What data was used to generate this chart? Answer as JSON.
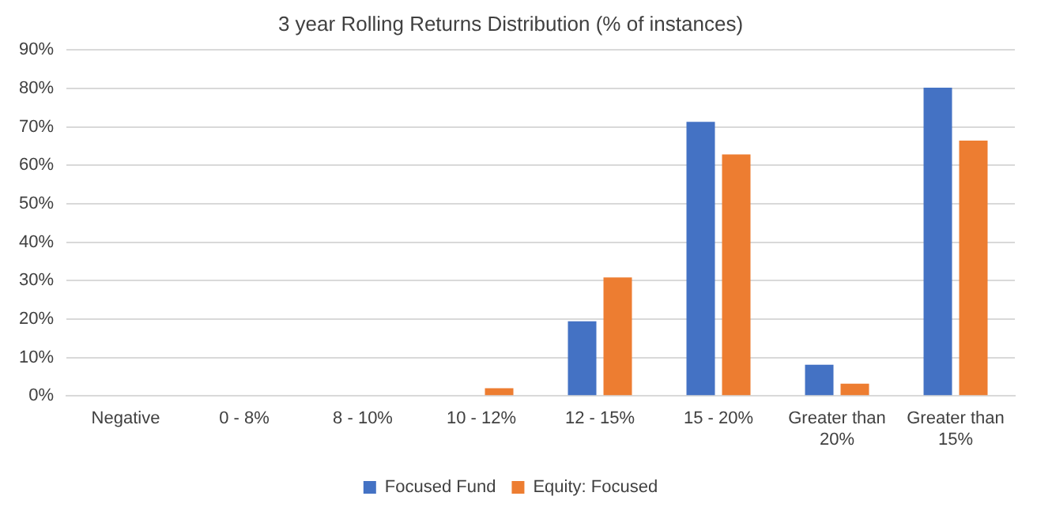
{
  "chart_data": {
    "type": "bar",
    "title": "3 year Rolling Returns Distribution (% of instances)",
    "categories": [
      "Negative",
      "0 - 8%",
      "8 - 10%",
      "10 - 12%",
      "12 - 15%",
      "15 - 20%",
      "Greater than 20%",
      "Greater than 15%"
    ],
    "series": [
      {
        "name": "Focused Fund",
        "color": "#4472c4",
        "values": [
          0,
          0,
          0,
          0,
          19.4,
          71.3,
          8.1,
          80.2
        ]
      },
      {
        "name": "Equity: Focused",
        "color": "#ed7d31",
        "values": [
          0,
          0,
          0,
          2.0,
          30.8,
          62.8,
          3.2,
          66.4
        ]
      }
    ],
    "ylim": [
      0,
      90
    ],
    "yticks": [
      {
        "value": 0,
        "label": "0%"
      },
      {
        "value": 10,
        "label": "10%"
      },
      {
        "value": 20,
        "label": "20%"
      },
      {
        "value": 30,
        "label": "30%"
      },
      {
        "value": 40,
        "label": "40%"
      },
      {
        "value": 50,
        "label": "50%"
      },
      {
        "value": 60,
        "label": "60%"
      },
      {
        "value": 70,
        "label": "70%"
      },
      {
        "value": 80,
        "label": "80%"
      },
      {
        "value": 90,
        "label": "90%"
      }
    ],
    "grid": "y",
    "legend": "bottom"
  }
}
